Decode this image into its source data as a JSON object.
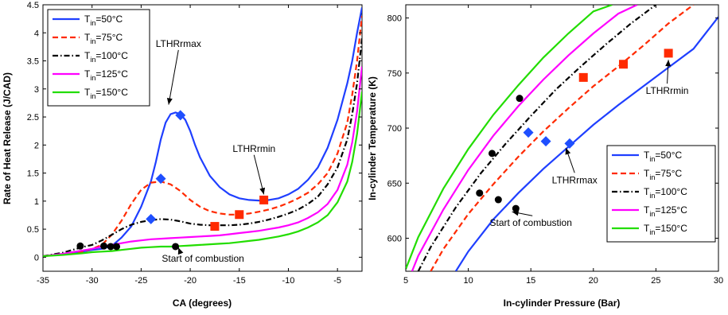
{
  "chart_data": [
    {
      "type": "line",
      "xlabel": "CA (degrees)",
      "ylabel": "Rate of Heat Release (J/CAD)",
      "xlim": [
        -35,
        -2.5
      ],
      "ylim": [
        -0.25,
        4.5
      ],
      "xticks": [
        -35,
        -30,
        -25,
        -20,
        -15,
        -10,
        -5
      ],
      "yticks": [
        0,
        0.5,
        1,
        1.5,
        2,
        2.5,
        3,
        3.5,
        4,
        4.5
      ],
      "grid": false,
      "legend_position": "top-left",
      "series": [
        {
          "name_main": "T",
          "name_sub": "in",
          "name_rest": "=50°C",
          "color": "#1f3fff",
          "dash": "solid",
          "x": [
            -35,
            -33,
            -31,
            -30,
            -29,
            -28,
            -27,
            -26,
            -25,
            -24,
            -23.5,
            -23,
            -22.5,
            -22,
            -21.5,
            -21,
            -20.5,
            -20,
            -19.5,
            -19,
            -18,
            -17,
            -16,
            -15,
            -14,
            -13,
            -12.5,
            -12,
            -11,
            -10,
            -9,
            -8,
            -7,
            -6,
            -5,
            -4,
            -3.5,
            -3,
            -2.5
          ],
          "y": [
            0.02,
            0.05,
            0.1,
            0.13,
            0.15,
            0.2,
            0.35,
            0.55,
            0.9,
            1.35,
            1.7,
            2.1,
            2.4,
            2.55,
            2.58,
            2.55,
            2.45,
            2.25,
            2.0,
            1.78,
            1.45,
            1.25,
            1.12,
            1.05,
            1.02,
            1.01,
            1.01,
            1.02,
            1.05,
            1.12,
            1.22,
            1.38,
            1.6,
            1.95,
            2.45,
            3.1,
            3.5,
            4.0,
            4.45
          ]
        },
        {
          "name_main": "T",
          "name_sub": "in",
          "name_rest": "=75°C",
          "color": "#ff2a00",
          "dash": "dashed",
          "x": [
            -35,
            -33,
            -31,
            -30,
            -29,
            -28,
            -27,
            -26,
            -25,
            -24,
            -23,
            -22,
            -21,
            -20,
            -19,
            -18,
            -17,
            -16,
            -15,
            -14,
            -13,
            -12,
            -11,
            -10,
            -9,
            -8,
            -7,
            -6,
            -5,
            -4,
            -3.5,
            -3,
            -2.5
          ],
          "y": [
            0.02,
            0.05,
            0.1,
            0.15,
            0.22,
            0.4,
            0.65,
            0.95,
            1.2,
            1.33,
            1.35,
            1.3,
            1.18,
            1.02,
            0.9,
            0.82,
            0.78,
            0.76,
            0.76,
            0.78,
            0.81,
            0.85,
            0.9,
            0.97,
            1.05,
            1.15,
            1.3,
            1.5,
            1.85,
            2.4,
            2.9,
            3.5,
            4.3
          ]
        },
        {
          "name_main": "T",
          "name_sub": "in",
          "name_rest": "=100°C",
          "color": "#000000",
          "dash": "dashdot",
          "x": [
            -35,
            -33,
            -31,
            -30,
            -29,
            -28,
            -27,
            -26,
            -25,
            -24,
            -23,
            -22,
            -21,
            -20,
            -19,
            -18,
            -17,
            -16,
            -15,
            -14,
            -13,
            -12,
            -11,
            -10,
            -9,
            -8,
            -7,
            -6,
            -5,
            -4,
            -3.5,
            -3,
            -2.5
          ],
          "y": [
            0.02,
            0.08,
            0.18,
            0.22,
            0.3,
            0.4,
            0.5,
            0.58,
            0.63,
            0.66,
            0.68,
            0.67,
            0.64,
            0.6,
            0.58,
            0.57,
            0.57,
            0.57,
            0.58,
            0.6,
            0.63,
            0.67,
            0.72,
            0.78,
            0.85,
            0.95,
            1.08,
            1.3,
            1.6,
            2.1,
            2.55,
            3.1,
            3.9
          ]
        },
        {
          "name_main": "T",
          "name_sub": "in",
          "name_rest": "=125°C",
          "color": "#ff00ff",
          "dash": "solid",
          "x": [
            -35,
            -33,
            -31,
            -30,
            -29,
            -28,
            -27,
            -26,
            -25,
            -24,
            -23,
            -22,
            -21,
            -20,
            -19,
            -18,
            -17,
            -16,
            -15,
            -14,
            -13,
            -12,
            -11,
            -10,
            -9,
            -8,
            -7,
            -6,
            -5,
            -4,
            -3.5,
            -3,
            -2.5
          ],
          "y": [
            0.02,
            0.06,
            0.12,
            0.15,
            0.19,
            0.22,
            0.25,
            0.28,
            0.3,
            0.32,
            0.33,
            0.34,
            0.35,
            0.36,
            0.37,
            0.38,
            0.39,
            0.41,
            0.43,
            0.45,
            0.47,
            0.5,
            0.53,
            0.57,
            0.62,
            0.7,
            0.8,
            0.95,
            1.2,
            1.65,
            2.05,
            2.6,
            3.4
          ]
        },
        {
          "name_main": "T",
          "name_sub": "in",
          "name_rest": "=150°C",
          "color": "#22dd00",
          "dash": "solid",
          "x": [
            -35,
            -33,
            -31,
            -30,
            -29,
            -28,
            -27,
            -26,
            -25,
            -24,
            -23,
            -22,
            -21,
            -20,
            -19,
            -18,
            -17,
            -16,
            -15,
            -14,
            -13,
            -12,
            -11,
            -10,
            -9,
            -8,
            -7,
            -6,
            -5,
            -4,
            -3.5,
            -3,
            -2.5
          ],
          "y": [
            0.02,
            0.04,
            0.07,
            0.09,
            0.1,
            0.11,
            0.13,
            0.15,
            0.17,
            0.18,
            0.19,
            0.19,
            0.2,
            0.21,
            0.22,
            0.23,
            0.24,
            0.25,
            0.27,
            0.29,
            0.31,
            0.34,
            0.37,
            0.41,
            0.46,
            0.53,
            0.62,
            0.75,
            0.98,
            1.35,
            1.7,
            2.2,
            2.95
          ]
        }
      ],
      "markers": {
        "soc": {
          "shape": "circle",
          "color": "#000000",
          "points": [
            [
              -31.2,
              0.2
            ],
            [
              -28.8,
              0.2
            ],
            [
              -28.1,
              0.19
            ],
            [
              -27.5,
              0.19
            ],
            [
              -21.5,
              0.19
            ]
          ]
        },
        "lthr_max": {
          "shape": "diamond",
          "color": "#1f4fff",
          "points": [
            [
              -21,
              2.53
            ],
            [
              -23,
              1.4
            ],
            [
              -24,
              0.68
            ]
          ]
        },
        "lthr_min": {
          "shape": "square",
          "color": "#ff2a00",
          "points": [
            [
              -12.5,
              1.02
            ],
            [
              -15,
              0.76
            ],
            [
              -17.5,
              0.55
            ]
          ]
        }
      },
      "annotations": [
        {
          "text": "LTHRrmax",
          "text_at": [
            -21.2,
            3.75
          ],
          "arrow_to": [
            -22.2,
            2.72
          ]
        },
        {
          "text": "LTHRrmin",
          "text_at": [
            -13.5,
            1.88
          ],
          "arrow_to": [
            -12.5,
            1.12
          ]
        },
        {
          "text": "Start of combustion",
          "text_at": [
            -18.7,
            -0.08
          ],
          "arrow_to": [
            -21.2,
            0.17
          ]
        }
      ]
    },
    {
      "type": "line",
      "xlabel": "In-cylinder Pressure (Bar)",
      "ylabel": "In-cylinder Temperature (K)",
      "xlim": [
        5,
        30
      ],
      "ylim": [
        570,
        812
      ],
      "xticks": [
        5,
        10,
        15,
        20,
        25,
        30
      ],
      "yticks": [
        600,
        650,
        700,
        750,
        800
      ],
      "grid": false,
      "legend_position": "bottom-right",
      "series": [
        {
          "name_main": "T",
          "name_sub": "in",
          "name_rest": "=50°C",
          "color": "#1f3fff",
          "dash": "solid",
          "x": [
            9,
            10,
            12,
            14,
            16,
            18,
            20,
            22,
            24,
            26,
            28,
            30
          ],
          "y": [
            570,
            588,
            617,
            641,
            663,
            683,
            703,
            721,
            738,
            755,
            772,
            801
          ]
        },
        {
          "name_main": "T",
          "name_sub": "in",
          "name_rest": "=75°C",
          "color": "#ff2a00",
          "dash": "dashed",
          "x": [
            7,
            8,
            10,
            12,
            14,
            16,
            18,
            20,
            22,
            24,
            26,
            28
          ],
          "y": [
            570,
            590,
            622,
            649,
            674,
            697,
            718,
            738,
            756,
            775,
            795,
            812
          ]
        },
        {
          "name_main": "T",
          "name_sub": "in",
          "name_rest": "=100°C",
          "color": "#000000",
          "dash": "dashdot",
          "x": [
            6,
            7,
            9,
            11,
            13,
            15,
            17,
            19,
            21,
            23,
            25
          ],
          "y": [
            570,
            592,
            628,
            659,
            686,
            711,
            735,
            756,
            776,
            795,
            812
          ]
        },
        {
          "name_main": "T",
          "name_sub": "in",
          "name_rest": "=125°C",
          "color": "#ff00ff",
          "dash": "solid",
          "x": [
            5.5,
            6,
            8,
            10,
            12,
            14,
            16,
            18,
            20,
            22,
            23.5
          ],
          "y": [
            570,
            584,
            626,
            662,
            693,
            720,
            744,
            766,
            786,
            804,
            812
          ]
        },
        {
          "name_main": "T",
          "name_sub": "in",
          "name_rest": "=150°C",
          "color": "#22dd00",
          "dash": "solid",
          "x": [
            5,
            6,
            8,
            10,
            12,
            14,
            16,
            18,
            20,
            21.5
          ],
          "y": [
            572,
            601,
            645,
            681,
            712,
            739,
            764,
            786,
            806,
            812
          ]
        }
      ],
      "markers": {
        "soc": {
          "shape": "circle",
          "color": "#000000",
          "points": [
            [
              13.8,
              627
            ],
            [
              12.4,
              635
            ],
            [
              10.9,
              641
            ],
            [
              11.9,
              677
            ],
            [
              14.1,
              727
            ]
          ]
        },
        "lthr_max": {
          "shape": "diamond",
          "color": "#1f4fff",
          "points": [
            [
              18.1,
              686
            ],
            [
              16.2,
              688
            ],
            [
              14.8,
              696
            ]
          ]
        },
        "lthr_min": {
          "shape": "square",
          "color": "#ff2a00",
          "points": [
            [
              26.0,
              768
            ],
            [
              22.4,
              758
            ],
            [
              19.2,
              746
            ]
          ]
        }
      },
      "annotations": [
        {
          "text": "LTHRrmin",
          "text_at": [
            25.9,
            731
          ],
          "arrow_to": [
            26.0,
            762
          ]
        },
        {
          "text": "LTHRrmax",
          "text_at": [
            18.5,
            650
          ],
          "arrow_to": [
            17.8,
            682
          ]
        },
        {
          "text": "Start of combustion",
          "text_at": [
            15.0,
            611
          ],
          "arrow_to": [
            13.5,
            624
          ]
        }
      ]
    }
  ]
}
